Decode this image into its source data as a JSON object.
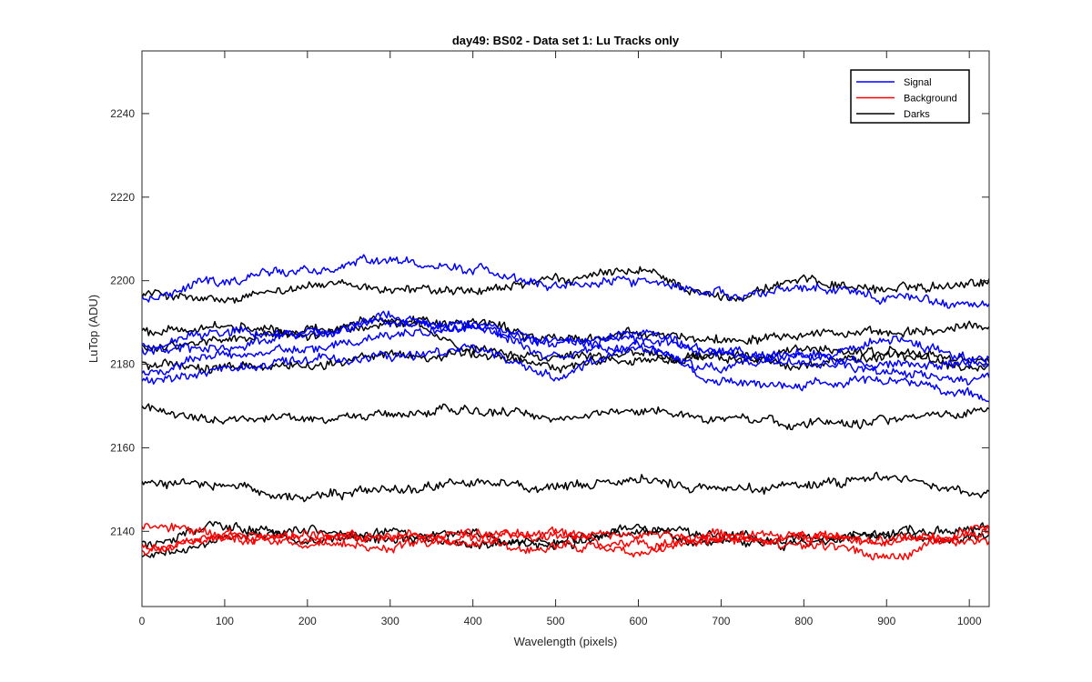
{
  "chart_data": {
    "type": "line",
    "title": "day49: BS02 - Data set 1: Lu Tracks only",
    "xlabel": "Wavelength (pixels)",
    "ylabel": "LuTop (ADU)",
    "xlim": [
      0,
      1024
    ],
    "ylim": [
      2122,
      2255
    ],
    "xticks": [
      0,
      100,
      200,
      300,
      400,
      500,
      600,
      700,
      800,
      900,
      1000
    ],
    "yticks": [
      2140,
      2160,
      2180,
      2200,
      2220,
      2240
    ],
    "grid": false,
    "legend_position": "top-right",
    "legend": [
      {
        "name": "Signal",
        "color": "#0000ff"
      },
      {
        "name": "Background",
        "color": "#ff0000"
      },
      {
        "name": "Darks",
        "color": "#000000"
      }
    ],
    "x_points": [
      0,
      100,
      200,
      300,
      400,
      500,
      600,
      700,
      800,
      900,
      1024
    ],
    "series": [
      {
        "name": "Signal",
        "color": "#0000ff",
        "values": [
          2196,
          2200,
          2203,
          2205,
          2203,
          2199,
          2200,
          2197,
          2198,
          2196,
          2194
        ]
      },
      {
        "name": "Signal",
        "color": "#0000ff",
        "values": [
          2185,
          2188,
          2187,
          2192,
          2189,
          2186,
          2184,
          2179,
          2182,
          2186,
          2181
        ]
      },
      {
        "name": "Signal",
        "color": "#0000ff",
        "values": [
          2183,
          2184,
          2187,
          2190,
          2188,
          2185,
          2186,
          2183,
          2182,
          2180,
          2180
        ]
      },
      {
        "name": "Signal",
        "color": "#0000ff",
        "values": [
          2178,
          2182,
          2184,
          2187,
          2189,
          2182,
          2188,
          2183,
          2180,
          2178,
          2177
        ]
      },
      {
        "name": "Signal",
        "color": "#0000ff",
        "values": [
          2176,
          2179,
          2181,
          2182,
          2184,
          2177,
          2185,
          2176,
          2175,
          2176,
          2172
        ]
      },
      {
        "name": "Background",
        "color": "#ff0000",
        "values": [
          2141,
          2139,
          2138,
          2139,
          2140,
          2139,
          2139,
          2138,
          2138,
          2138,
          2140
        ]
      },
      {
        "name": "Background",
        "color": "#ff0000",
        "values": [
          2137,
          2138,
          2139,
          2138,
          2137,
          2136,
          2137,
          2139,
          2139,
          2137,
          2138
        ]
      },
      {
        "name": "Background",
        "color": "#ff0000",
        "values": [
          2135,
          2139,
          2137,
          2136,
          2138,
          2140,
          2135,
          2138,
          2137,
          2134,
          2141
        ]
      },
      {
        "name": "Darks",
        "color": "#000000",
        "values": [
          2197,
          2195,
          2199,
          2198,
          2197,
          2200,
          2202,
          2196,
          2200,
          2198,
          2200
        ]
      },
      {
        "name": "Darks",
        "color": "#000000",
        "values": [
          2188,
          2189,
          2187,
          2191,
          2190,
          2186,
          2187,
          2186,
          2188,
          2187,
          2189
        ]
      },
      {
        "name": "Darks",
        "color": "#000000",
        "values": [
          2184,
          2186,
          2188,
          2190,
          2184,
          2182,
          2183,
          2181,
          2183,
          2183,
          2181
        ]
      },
      {
        "name": "Darks",
        "color": "#000000",
        "values": [
          2180,
          2179,
          2180,
          2182,
          2182,
          2180,
          2181,
          2182,
          2180,
          2182,
          2179
        ]
      },
      {
        "name": "Darks",
        "color": "#000000",
        "values": [
          2169,
          2167,
          2167,
          2168,
          2169,
          2167,
          2169,
          2167,
          2166,
          2167,
          2169
        ]
      },
      {
        "name": "Darks",
        "color": "#000000",
        "values": [
          2152,
          2151,
          2148,
          2150,
          2152,
          2150,
          2152,
          2150,
          2151,
          2153,
          2149
        ]
      },
      {
        "name": "Darks",
        "color": "#000000",
        "values": [
          2137,
          2141,
          2138,
          2140,
          2139,
          2137,
          2141,
          2139,
          2137,
          2140,
          2141
        ]
      },
      {
        "name": "Darks",
        "color": "#000000",
        "values": [
          2134,
          2138,
          2140,
          2138,
          2137,
          2138,
          2140,
          2137,
          2138,
          2139,
          2138
        ]
      }
    ]
  }
}
